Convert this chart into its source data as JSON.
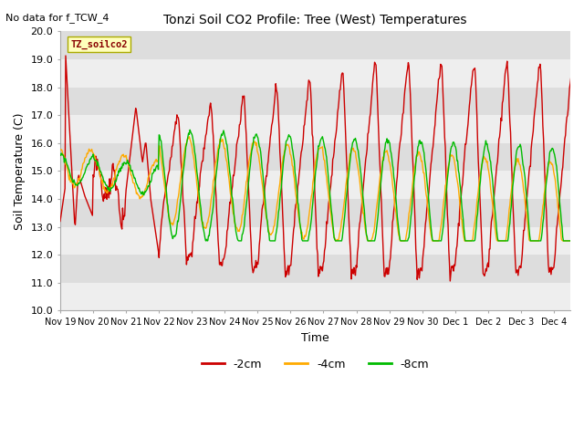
{
  "title": "Tonzi Soil CO2 Profile: Tree (West) Temperatures",
  "subtitle": "No data for f_TCW_4",
  "xlabel": "Time",
  "ylabel": "Soil Temperature (C)",
  "ylim": [
    10.0,
    20.0
  ],
  "yticks": [
    10.0,
    11.0,
    12.0,
    13.0,
    14.0,
    15.0,
    16.0,
    17.0,
    18.0,
    19.0,
    20.0
  ],
  "legend_labels": [
    "-2cm",
    "-4cm",
    "-8cm"
  ],
  "legend_colors": [
    "#cc0000",
    "#ffaa00",
    "#00bb00"
  ],
  "box_label": "TZ_soilco2",
  "line_width": 1.0,
  "fig_bg_color": "#ffffff",
  "plot_bg_color": "#e8e8e8",
  "band_color_light": "#eeeeee",
  "band_color_dark": "#dddddd",
  "xtick_labels": [
    "Nov 19",
    "Nov 20",
    "Nov 21",
    "Nov 22",
    "Nov 23",
    "Nov 24",
    "Nov 25",
    "Nov 26",
    "Nov 27",
    "Nov 28",
    "Nov 29",
    "Nov 30",
    "Dec 1",
    "Dec 2",
    "Dec 3",
    "Dec 4"
  ]
}
